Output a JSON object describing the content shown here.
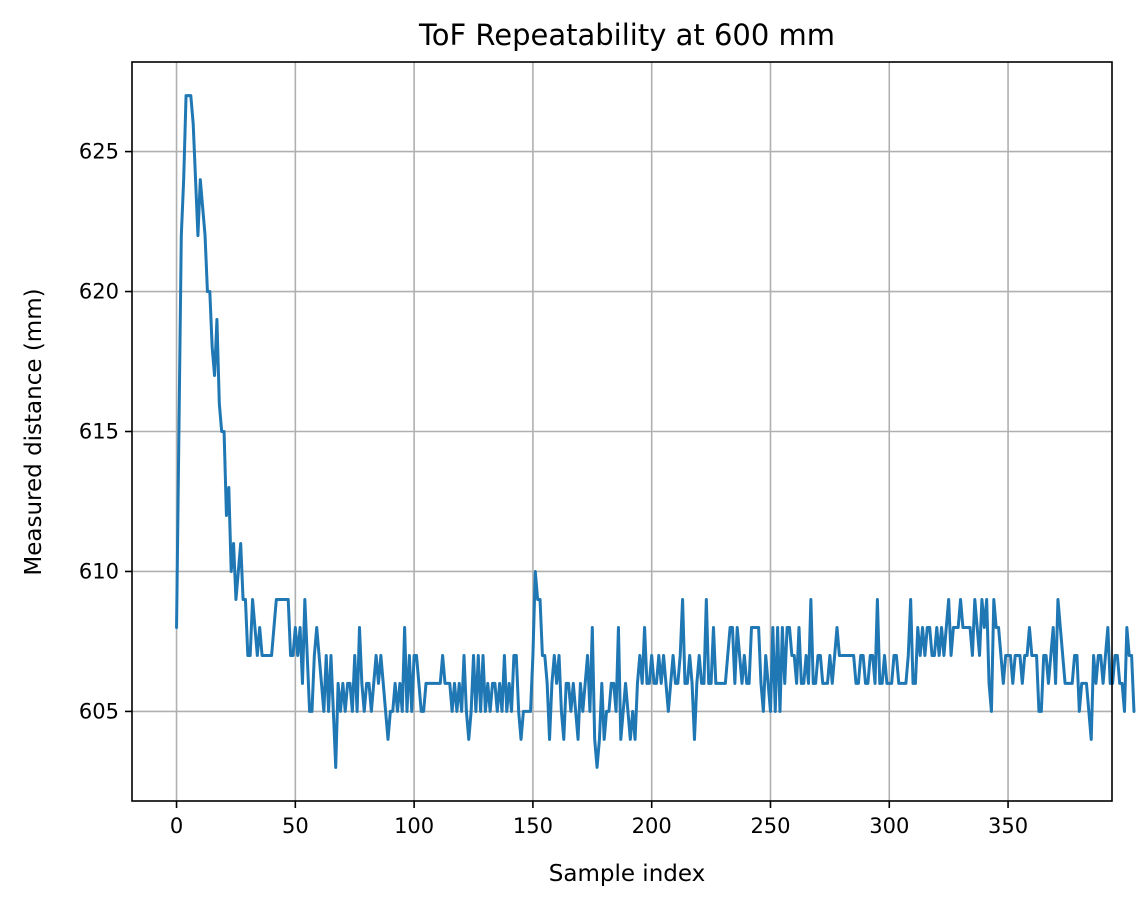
{
  "chart_data": {
    "type": "line",
    "title": "ToF Repeatability at 600 mm",
    "xlabel": "Sample index",
    "ylabel": "Measured distance (mm)",
    "xlim": [
      -18.75,
      393.75
    ],
    "ylim": [
      601.8,
      628.2
    ],
    "xticks": [
      0,
      50,
      100,
      150,
      200,
      250,
      300,
      350
    ],
    "yticks": [
      605,
      610,
      615,
      620,
      625
    ],
    "grid": true,
    "color": "#1f77b4",
    "series": [
      {
        "values": [
          608,
          615,
          622,
          624,
          627,
          627,
          627,
          626,
          624,
          622,
          624,
          623,
          622,
          620,
          620,
          618,
          617,
          619,
          616,
          615,
          615,
          612,
          613,
          610,
          611,
          609,
          610,
          611,
          609,
          609,
          607,
          607,
          609,
          608,
          607,
          608,
          607,
          607,
          607,
          607,
          607,
          608,
          609,
          609,
          609,
          609,
          609,
          609,
          607,
          607,
          608,
          607,
          608,
          606,
          609,
          607,
          605,
          605,
          607,
          608,
          607,
          606,
          605,
          607,
          605,
          607,
          605,
          603,
          606,
          605,
          606,
          605,
          606,
          606,
          605,
          607,
          605,
          608,
          606,
          605,
          606,
          606,
          605,
          606,
          607,
          606,
          607,
          606,
          605,
          604,
          605,
          605,
          606,
          605,
          606,
          605,
          608,
          605,
          607,
          605,
          607,
          607,
          606,
          605,
          605,
          606,
          606,
          606,
          606,
          606,
          606,
          606,
          607,
          606,
          606,
          606,
          605,
          606,
          605,
          606,
          605,
          607,
          605,
          604,
          605,
          607,
          605,
          607,
          605,
          607,
          605,
          606,
          605,
          606,
          606,
          605,
          606,
          605,
          607,
          605,
          606,
          605,
          607,
          607,
          605,
          604,
          605,
          605,
          605,
          605,
          607,
          610,
          609,
          609,
          607,
          607,
          606,
          604,
          606,
          607,
          606,
          607,
          605,
          604,
          606,
          606,
          605,
          606,
          605,
          604,
          606,
          605,
          606,
          607,
          605,
          608,
          604,
          603,
          604,
          606,
          604,
          605,
          605,
          606,
          606,
          605,
          608,
          604,
          605,
          606,
          605,
          604,
          605,
          604,
          606,
          607,
          606,
          608,
          606,
          606,
          607,
          606,
          606,
          607,
          606,
          607,
          606,
          605,
          606,
          607,
          606,
          606,
          607,
          609,
          606,
          606,
          607,
          606,
          604,
          606,
          607,
          606,
          606,
          609,
          606,
          606,
          608,
          606,
          606,
          606,
          606,
          606,
          607,
          608,
          608,
          606,
          608,
          607,
          606,
          607,
          606,
          606,
          608,
          608,
          608,
          608,
          606,
          605,
          607,
          606,
          605,
          608,
          605,
          608,
          605,
          608,
          606,
          608,
          608,
          607,
          607,
          606,
          608,
          606,
          606,
          607,
          606,
          609,
          606,
          606,
          607,
          607,
          606,
          606,
          606,
          607,
          606,
          607,
          608,
          607,
          607,
          607,
          607,
          607,
          607,
          607,
          606,
          606,
          607,
          607,
          606,
          606,
          607,
          607,
          606,
          609,
          606,
          606,
          607,
          606,
          606,
          606,
          607,
          607,
          606,
          606,
          606,
          606,
          607,
          609,
          606,
          606,
          608,
          607,
          608,
          607,
          608,
          608,
          607,
          607,
          608,
          607,
          608,
          607,
          608,
          609,
          607,
          608,
          608,
          608,
          609,
          608,
          608,
          608,
          608,
          607,
          609,
          608,
          607,
          609,
          608,
          609,
          606,
          605,
          609,
          608,
          608,
          607,
          606,
          607,
          607,
          607,
          606,
          607,
          607,
          607,
          606,
          607,
          607,
          608,
          607,
          607,
          607,
          605,
          605,
          607,
          607,
          606,
          607,
          608,
          606,
          609,
          608,
          607,
          606,
          606,
          606,
          606,
          607,
          607,
          605,
          606,
          606,
          606,
          605,
          604,
          607,
          606,
          607,
          607,
          606,
          607,
          608,
          606,
          606,
          607,
          607,
          606,
          606,
          605,
          608,
          607,
          607,
          605
        ]
      }
    ]
  }
}
